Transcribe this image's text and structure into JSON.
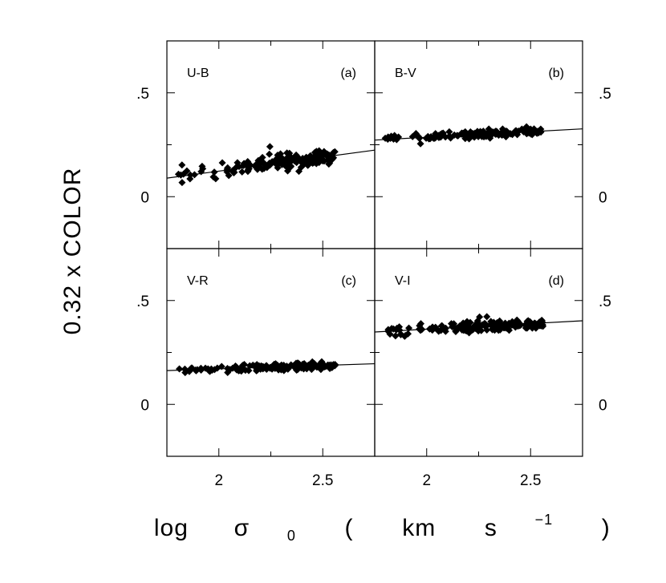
{
  "chart_data": {
    "type": "scatter",
    "ylabel": "0.32 x COLOR",
    "xlabel": {
      "prefix": "log",
      "symbol": "σ",
      "subscript": "0",
      "open_paren": "(",
      "unit": "km",
      "unit2": "s",
      "superscript": "−1",
      "close_paren": ")"
    },
    "xlim": [
      1.75,
      2.75
    ],
    "ylim": [
      -0.25,
      0.75
    ],
    "x_ticks": [
      {
        "value": 2.0,
        "label": "2"
      },
      {
        "value": 2.5,
        "label": "2.5"
      }
    ],
    "y_ticks": [
      {
        "value": 0.5,
        "label": ".5"
      },
      {
        "value": 0.0,
        "label": "0"
      }
    ],
    "panels": [
      {
        "color": "U-B",
        "tag": "(a)",
        "fit": {
          "intercept": -0.147,
          "slope": 0.135
        },
        "center": {
          "intercept": -0.122,
          "slope": 0.125
        },
        "spread": 0.025,
        "n": 170
      },
      {
        "color": "B-V",
        "tag": "(b)",
        "fit": {
          "intercept": 0.178,
          "slope": 0.054
        },
        "center": {
          "intercept": 0.178,
          "slope": 0.054
        },
        "spread": 0.012,
        "n": 170
      },
      {
        "color": "V-R",
        "tag": "(c)",
        "fit": {
          "intercept": 0.105,
          "slope": 0.033
        },
        "center": {
          "intercept": 0.105,
          "slope": 0.033
        },
        "spread": 0.011,
        "n": 160
      },
      {
        "color": "V-I",
        "tag": "(d)",
        "fit": {
          "intercept": 0.254,
          "slope": 0.054
        },
        "center": {
          "intercept": 0.254,
          "slope": 0.054
        },
        "spread": 0.018,
        "n": 180
      }
    ]
  }
}
